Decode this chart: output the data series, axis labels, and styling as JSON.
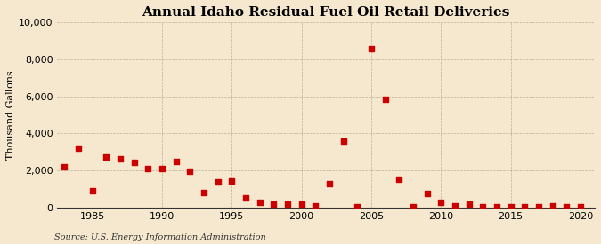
{
  "title": "Annual Idaho Residual Fuel Oil Retail Deliveries",
  "ylabel": "Thousand Gallons",
  "source": "Source: U.S. Energy Information Administration",
  "background_color": "#f5e8ce",
  "plot_background_color": "#f5e8ce",
  "marker_color": "#cc0000",
  "years": [
    1983,
    1984,
    1985,
    1986,
    1987,
    1988,
    1989,
    1990,
    1991,
    1992,
    1993,
    1994,
    1995,
    1996,
    1997,
    1998,
    1999,
    2000,
    2001,
    2002,
    2003,
    2004,
    2005,
    2006,
    2007,
    2008,
    2009,
    2010,
    2011,
    2012,
    2013,
    2014,
    2015,
    2016,
    2017,
    2018,
    2019,
    2020
  ],
  "values": [
    2200,
    3200,
    900,
    2700,
    2650,
    2450,
    2100,
    2100,
    2500,
    1950,
    800,
    1400,
    1450,
    500,
    300,
    200,
    200,
    200,
    100,
    1300,
    3600,
    50,
    8550,
    5850,
    1550,
    50,
    750,
    300,
    100,
    200,
    50,
    50,
    50,
    50,
    50,
    100,
    50,
    50
  ],
  "xlim": [
    1982.5,
    2021
  ],
  "ylim": [
    0,
    10000
  ],
  "yticks": [
    0,
    2000,
    4000,
    6000,
    8000,
    10000
  ],
  "xticks": [
    1985,
    1990,
    1995,
    2000,
    2005,
    2010,
    2015,
    2020
  ],
  "title_fontsize": 11,
  "label_fontsize": 8,
  "tick_fontsize": 8,
  "source_fontsize": 7,
  "marker_size": 4
}
